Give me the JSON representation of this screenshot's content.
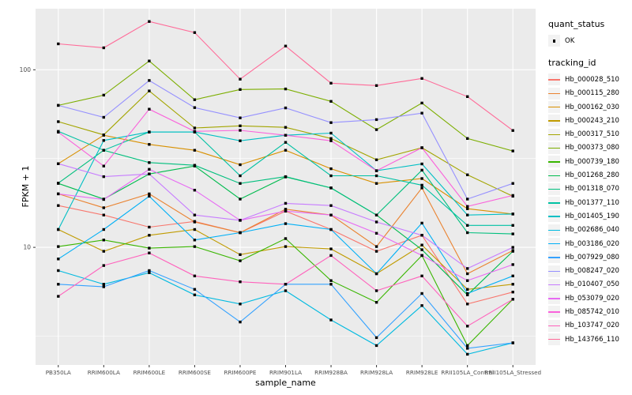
{
  "chart_data": {
    "type": "line",
    "title": "",
    "xlabel": "sample_name",
    "ylabel": "FPKM + 1",
    "y_scale": "log10",
    "y_ticks": [
      10,
      100
    ],
    "y_minor_gridlines": [
      3.162,
      31.62
    ],
    "ylim": [
      2.1,
      230
    ],
    "grid": true,
    "panel_bg": "#EBEBEB",
    "grid_color": "#FFFFFF",
    "tick_label_color": "#4D4D4D",
    "point_color": "#000000",
    "point_shape": "square",
    "legend_position": "right",
    "legend": {
      "quant_status": {
        "title": "quant_status",
        "entries": [
          "OK"
        ]
      },
      "tracking_id": {
        "title": "tracking_id"
      }
    },
    "categories": [
      "PB350LA",
      "RRIM600LA",
      "RRIM600LE",
      "RRIM600SE",
      "RRIM600PE",
      "RRIM901LA",
      "RRIM928BA",
      "RRIM928LA",
      "RRIM928LE",
      "RRII105LA_Control",
      "RRII105LA_Stressed"
    ],
    "series": [
      {
        "name": "Hb_000028_510",
        "color": "#F8766D",
        "values": [
          17.2,
          15.2,
          13.0,
          14.0,
          12.1,
          16.0,
          12.6,
          9.5,
          11.7,
          4.8,
          5.6
        ]
      },
      {
        "name": "Hb_000115_280",
        "color": "#EA8331",
        "values": [
          20.0,
          16.7,
          20.0,
          13.9,
          12.1,
          16.4,
          15.2,
          10.1,
          21.6,
          7.1,
          9.6
        ]
      },
      {
        "name": "Hb_000162_030",
        "color": "#D89000",
        "values": [
          29.6,
          42.8,
          38.0,
          35.2,
          29.2,
          35.2,
          27.7,
          22.9,
          24.4,
          16.5,
          15.4
        ]
      },
      {
        "name": "Hb_000243_210",
        "color": "#C09B00",
        "values": [
          12.6,
          9.5,
          11.7,
          12.6,
          9.1,
          10.1,
          9.8,
          7.1,
          10.3,
          5.8,
          6.2
        ]
      },
      {
        "name": "Hb_000317_510",
        "color": "#A3A500",
        "values": [
          51.0,
          43.0,
          76.0,
          47.0,
          48.3,
          47.4,
          41.0,
          31.1,
          36.4,
          25.6,
          19.4
        ]
      },
      {
        "name": "Hb_000373_080",
        "color": "#7CAE00",
        "values": [
          63.0,
          72.0,
          112.0,
          67.8,
          77.4,
          78.0,
          66.4,
          46.0,
          65.0,
          41.0,
          34.9
        ]
      },
      {
        "name": "Hb_000739_180",
        "color": "#39B600",
        "values": [
          10.1,
          11.0,
          9.9,
          10.1,
          8.4,
          11.2,
          6.5,
          4.9,
          9.0,
          2.8,
          5.1
        ]
      },
      {
        "name": "Hb_001268_280",
        "color": "#00BB4E",
        "values": [
          22.9,
          18.7,
          25.9,
          28.7,
          18.7,
          24.9,
          21.6,
          15.2,
          9.7,
          5.4,
          9.5
        ]
      },
      {
        "name": "Hb_001318_070",
        "color": "#00BF7D",
        "values": [
          23.0,
          35.2,
          30.0,
          29.0,
          22.9,
          25.0,
          21.6,
          15.2,
          27.2,
          12.1,
          11.9
        ]
      },
      {
        "name": "Hb_001377_110",
        "color": "#00C1A3",
        "values": [
          45.0,
          35.2,
          44.6,
          44.6,
          25.3,
          39.0,
          25.3,
          25.3,
          22.4,
          13.3,
          13.3
        ]
      },
      {
        "name": "Hb_001405_190",
        "color": "#00BFC4",
        "values": [
          12.6,
          40.0,
          44.6,
          44.6,
          39.8,
          42.8,
          44.0,
          27.0,
          29.5,
          15.2,
          15.4
        ]
      },
      {
        "name": "Hb_002686_040",
        "color": "#00BAE0",
        "values": [
          7.4,
          6.2,
          7.2,
          5.4,
          4.8,
          5.7,
          3.9,
          2.8,
          4.7,
          2.5,
          2.9
        ]
      },
      {
        "name": "Hb_003186_020",
        "color": "#00B0F6",
        "values": [
          8.6,
          12.6,
          19.4,
          11.0,
          12.1,
          13.6,
          12.6,
          7.1,
          13.7,
          5.5,
          6.9
        ]
      },
      {
        "name": "Hb_007929_080",
        "color": "#35A2FF",
        "values": [
          6.2,
          6.0,
          7.4,
          5.8,
          3.8,
          6.2,
          6.2,
          3.1,
          5.5,
          2.7,
          2.9
        ]
      },
      {
        "name": "Hb_008247_020",
        "color": "#9590FF",
        "values": [
          63.0,
          54.0,
          87.0,
          61.2,
          53.6,
          61.0,
          50.4,
          52.4,
          57.0,
          18.7,
          22.9
        ]
      },
      {
        "name": "Hb_010407_050",
        "color": "#C77CFF",
        "values": [
          29.6,
          25.0,
          25.9,
          15.2,
          14.2,
          17.7,
          17.2,
          13.9,
          11.7,
          7.6,
          10.0
        ]
      },
      {
        "name": "Hb_053079_020",
        "color": "#E76BF3",
        "values": [
          20.0,
          18.6,
          27.5,
          21.0,
          14.2,
          16.0,
          15.2,
          12.0,
          9.0,
          6.5,
          8.0
        ]
      },
      {
        "name": "Hb_085742_010",
        "color": "#FA62DB",
        "values": [
          44.5,
          28.7,
          60.0,
          45.0,
          45.6,
          42.8,
          39.8,
          27.0,
          36.4,
          17.0,
          19.6
        ]
      },
      {
        "name": "Hb_103747_020",
        "color": "#FF62BC",
        "values": [
          5.3,
          7.9,
          9.3,
          6.9,
          6.4,
          6.2,
          9.0,
          5.7,
          6.9,
          3.6,
          5.1
        ]
      },
      {
        "name": "Hb_143766_110",
        "color": "#FF6A98",
        "values": [
          140.0,
          133.0,
          187.0,
          162.0,
          88.5,
          136.0,
          84.0,
          81.5,
          89.3,
          70.6,
          45.5
        ]
      }
    ]
  }
}
